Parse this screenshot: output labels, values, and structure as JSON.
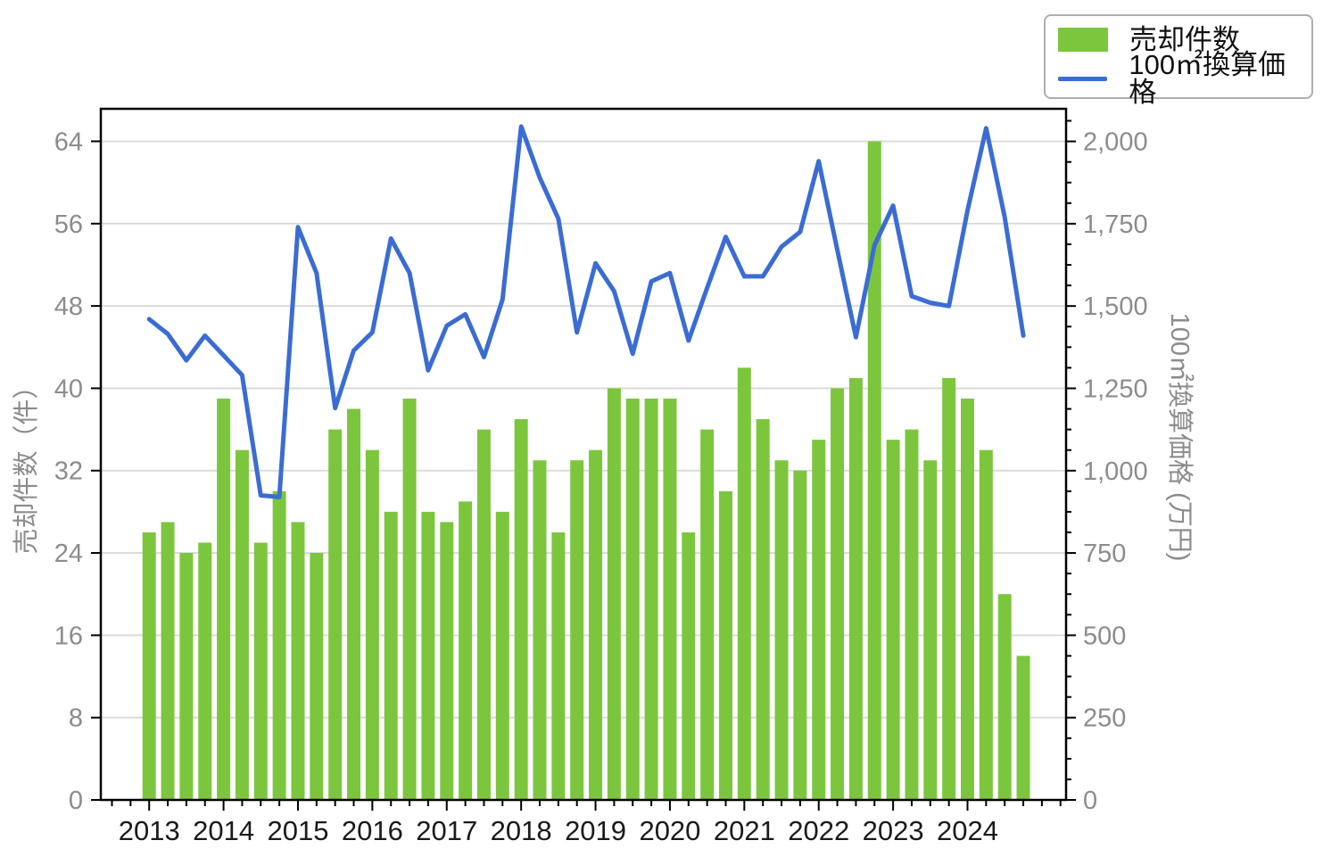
{
  "page": {
    "background": "#ffffff"
  },
  "legend": {
    "position": "top-right",
    "items": [
      {
        "label": "売却件数",
        "type": "bar"
      },
      {
        "label": "100㎡換算価格",
        "type": "line"
      }
    ]
  },
  "chart_data": {
    "type": "bar",
    "subtype": "combo-bar-line-dual-axis",
    "title": "",
    "categories": [
      "2013Q1",
      "2013Q2",
      "2013Q3",
      "2013Q4",
      "2014Q1",
      "2014Q2",
      "2014Q3",
      "2014Q4",
      "2015Q1",
      "2015Q2",
      "2015Q3",
      "2015Q4",
      "2016Q1",
      "2016Q2",
      "2016Q3",
      "2016Q4",
      "2017Q1",
      "2017Q2",
      "2017Q3",
      "2017Q4",
      "2018Q1",
      "2018Q2",
      "2018Q3",
      "2018Q4",
      "2019Q1",
      "2019Q2",
      "2019Q3",
      "2019Q4",
      "2020Q1",
      "2020Q2",
      "2020Q3",
      "2020Q4",
      "2021Q1",
      "2021Q2",
      "2021Q3",
      "2021Q4",
      "2022Q1",
      "2022Q2",
      "2022Q3",
      "2022Q4",
      "2023Q1",
      "2023Q2",
      "2023Q3",
      "2023Q4",
      "2024Q1",
      "2024Q2",
      "2024Q3",
      "2024Q4"
    ],
    "x_year_labels": [
      "2013",
      "2014",
      "2015",
      "2016",
      "2017",
      "2018",
      "2019",
      "2020",
      "2021",
      "2022",
      "2023",
      "2024"
    ],
    "series": [
      {
        "name": "売却件数",
        "type": "bar",
        "axis": "left",
        "color": "#7CC63E",
        "values": [
          26,
          27,
          24,
          25,
          39,
          34,
          25,
          30,
          27,
          24,
          36,
          38,
          34,
          28,
          39,
          28,
          27,
          29,
          36,
          28,
          37,
          33,
          26,
          33,
          34,
          40,
          39,
          39,
          39,
          26,
          36,
          30,
          42,
          37,
          33,
          32,
          35,
          40,
          41,
          64,
          35,
          36,
          33,
          41,
          39,
          34,
          20,
          14
        ]
      },
      {
        "name": "100㎡換算価格",
        "type": "line",
        "axis": "right",
        "color": "#3B6CD4",
        "values": [
          1460,
          1415,
          1335,
          1410,
          1350,
          1290,
          925,
          920,
          1740,
          1600,
          1190,
          1365,
          1420,
          1705,
          1600,
          1305,
          1440,
          1475,
          1345,
          1520,
          2045,
          1890,
          1765,
          1420,
          1630,
          1545,
          1355,
          1575,
          1600,
          1395,
          1555,
          1710,
          1590,
          1590,
          1680,
          1725,
          1940,
          1670,
          1405,
          1685,
          1805,
          1530,
          1510,
          1500,
          1790,
          2040,
          1770,
          1410
        ]
      }
    ],
    "y_left": {
      "title": "売却件数（件）",
      "ticks": [
        0,
        8,
        16,
        24,
        32,
        40,
        48,
        56,
        64
      ],
      "tick_labels": [
        "0",
        "8",
        "16",
        "24",
        "32",
        "40",
        "48",
        "56",
        "64"
      ],
      "range": [
        0,
        67.16
      ]
    },
    "y_right": {
      "title": "100㎡換算価格 (万円)",
      "ticks": [
        0,
        250,
        500,
        750,
        1000,
        1250,
        1500,
        1750,
        2000
      ],
      "tick_labels": [
        "0",
        "250",
        "500",
        "750",
        "1,000",
        "1,250",
        "1,500",
        "1,750",
        "2,000"
      ],
      "range": [
        0,
        2099
      ],
      "minor_tick_step": 62.5
    },
    "x_axis": {
      "minor_tick_unit": "quarter"
    },
    "grid": {
      "horizontal": true,
      "vertical": false,
      "color": "#d8d8d8"
    },
    "frame_color": "#000000",
    "tick_label_colors": {
      "x": "#1a1a1a",
      "y": "#8c8c8c"
    },
    "legend_position": "top-right"
  }
}
